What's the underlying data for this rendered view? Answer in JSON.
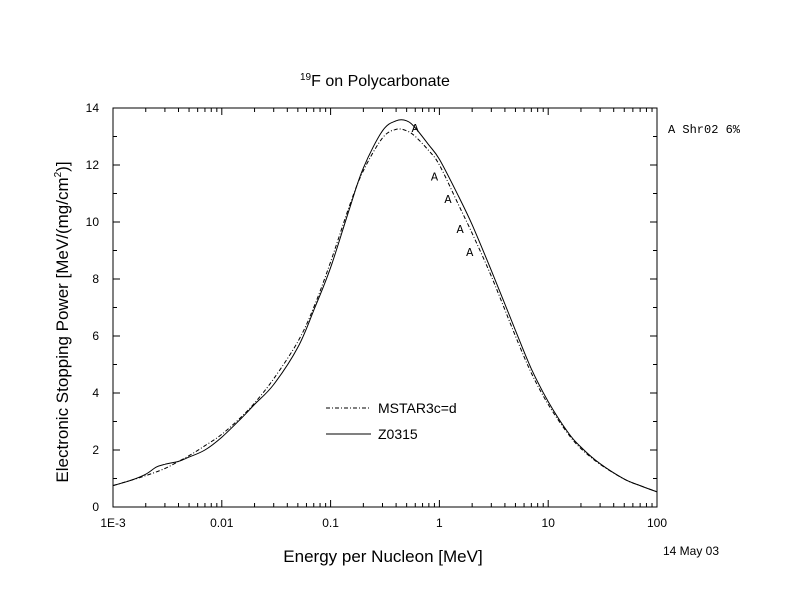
{
  "chart_data": {
    "type": "line",
    "title": {
      "superscript": "19",
      "text": "F on Polycarbonate"
    },
    "xlabel": "Energy per Nucleon [MeV]",
    "ylabel": {
      "prefix": "Electronic Stopping Power [MeV/(mg/cm",
      "superscript": "2",
      "suffix": ")]"
    },
    "x_scale": "log",
    "xlim": [
      0.001,
      100
    ],
    "ylim": [
      0,
      14
    ],
    "x_ticks": [
      {
        "value": 0.001,
        "label": "1E-3"
      },
      {
        "value": 0.01,
        "label": "0.01"
      },
      {
        "value": 0.1,
        "label": "0.1"
      },
      {
        "value": 1,
        "label": "1"
      },
      {
        "value": 10,
        "label": "10"
      },
      {
        "value": 100,
        "label": "100"
      }
    ],
    "y_ticks": [
      0,
      2,
      4,
      6,
      8,
      10,
      12,
      14
    ],
    "grid": false,
    "series": [
      {
        "name": "MSTAR3c=d",
        "style": "dash-dot",
        "color": "#000000",
        "x": [
          0.001,
          0.0015,
          0.002,
          0.003,
          0.004,
          0.005,
          0.007,
          0.01,
          0.015,
          0.02,
          0.03,
          0.05,
          0.07,
          0.1,
          0.15,
          0.2,
          0.3,
          0.4,
          0.5,
          0.6,
          0.8,
          1,
          1.5,
          2,
          3,
          5,
          7,
          10,
          15,
          20,
          30,
          50,
          70,
          100
        ],
        "y": [
          0.75,
          0.95,
          1.1,
          1.35,
          1.6,
          1.8,
          2.15,
          2.55,
          3.15,
          3.65,
          4.5,
          5.8,
          7.0,
          8.6,
          10.6,
          11.8,
          12.95,
          13.25,
          13.2,
          13.0,
          12.5,
          12.0,
          10.6,
          9.6,
          8.1,
          6.0,
          4.7,
          3.6,
          2.6,
          2.05,
          1.5,
          0.98,
          0.75,
          0.53
        ]
      },
      {
        "name": "Z0315",
        "style": "solid",
        "color": "#000000",
        "x": [
          0.001,
          0.0015,
          0.002,
          0.0025,
          0.003,
          0.004,
          0.005,
          0.007,
          0.01,
          0.015,
          0.02,
          0.03,
          0.05,
          0.07,
          0.1,
          0.15,
          0.2,
          0.3,
          0.4,
          0.5,
          0.6,
          0.8,
          1,
          1.5,
          2,
          3,
          5,
          7,
          10,
          15,
          20,
          30,
          50,
          70,
          100
        ],
        "y": [
          0.75,
          0.95,
          1.15,
          1.4,
          1.5,
          1.6,
          1.75,
          2.0,
          2.45,
          3.1,
          3.6,
          4.3,
          5.6,
          6.9,
          8.4,
          10.5,
          11.9,
          13.2,
          13.55,
          13.55,
          13.3,
          12.7,
          12.2,
          10.9,
          9.9,
          8.3,
          6.2,
          4.85,
          3.7,
          2.65,
          2.1,
          1.52,
          0.98,
          0.75,
          0.53
        ]
      }
    ],
    "experimental_data": {
      "marker": "A",
      "label": "A Shr02 6%",
      "x": [
        0.6,
        0.9,
        1.2,
        1.55,
        1.9
      ],
      "y": [
        13.3,
        11.6,
        10.8,
        9.75,
        8.95
      ]
    },
    "legend": {
      "position": "bottom-center"
    },
    "date": "14 May 03"
  }
}
